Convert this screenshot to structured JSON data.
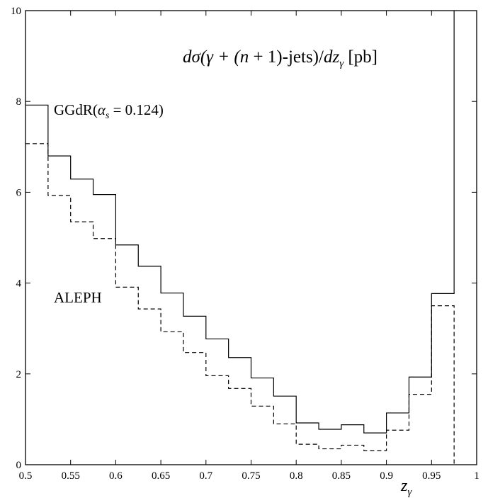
{
  "chart_data": {
    "type": "line",
    "step": true,
    "title": "dσ(γ + (n+1)-jets)/dz_γ [pb]",
    "xlabel": "z_γ",
    "ylabel": "",
    "xlim": [
      0.5,
      1.0
    ],
    "ylim": [
      0,
      10
    ],
    "xticks": [
      0.5,
      0.55,
      0.6,
      0.65,
      0.7,
      0.75,
      0.8,
      0.85,
      0.9,
      0.95,
      1.0
    ],
    "xtick_labels": [
      "0.5",
      "0.55",
      "0.6",
      "0.65",
      "0.7",
      "0.75",
      "0.8",
      "0.85",
      "0.9",
      "0.95",
      "1"
    ],
    "yticks": [
      0,
      2,
      4,
      6,
      8,
      10
    ],
    "ytick_labels": [
      "0",
      "2",
      "4",
      "6",
      "8",
      "10"
    ],
    "grid": false,
    "bin_edges": [
      0.5,
      0.525,
      0.55,
      0.575,
      0.6,
      0.625,
      0.65,
      0.675,
      0.7,
      0.725,
      0.75,
      0.775,
      0.8,
      0.825,
      0.85,
      0.875,
      0.9,
      0.925,
      0.95,
      0.975
    ],
    "series": [
      {
        "name": "GGdR(α_s = 0.124)",
        "style": "solid",
        "color": "#000000",
        "values": [
          7.92,
          6.8,
          6.29,
          5.95,
          4.84,
          4.37,
          3.78,
          3.27,
          2.77,
          2.36,
          1.91,
          1.51,
          0.92,
          0.78,
          0.88,
          0.7,
          1.14,
          1.93,
          3.77
        ],
        "last_value_extends_above": 10
      },
      {
        "name": "ALEPH",
        "style": "dashed",
        "color": "#000000",
        "values": [
          7.07,
          5.93,
          5.35,
          4.98,
          3.91,
          3.43,
          2.93,
          2.47,
          1.96,
          1.68,
          1.29,
          0.9,
          0.45,
          0.35,
          0.43,
          0.31,
          0.76,
          1.55,
          3.5
        ]
      }
    ],
    "annotations": {
      "title_text": "dσ(γ + (n+1)-jets)/dz_γ [pb]",
      "solid_label": "GGdR(α_s = 0.124)",
      "dashed_label": "ALEPH"
    }
  }
}
